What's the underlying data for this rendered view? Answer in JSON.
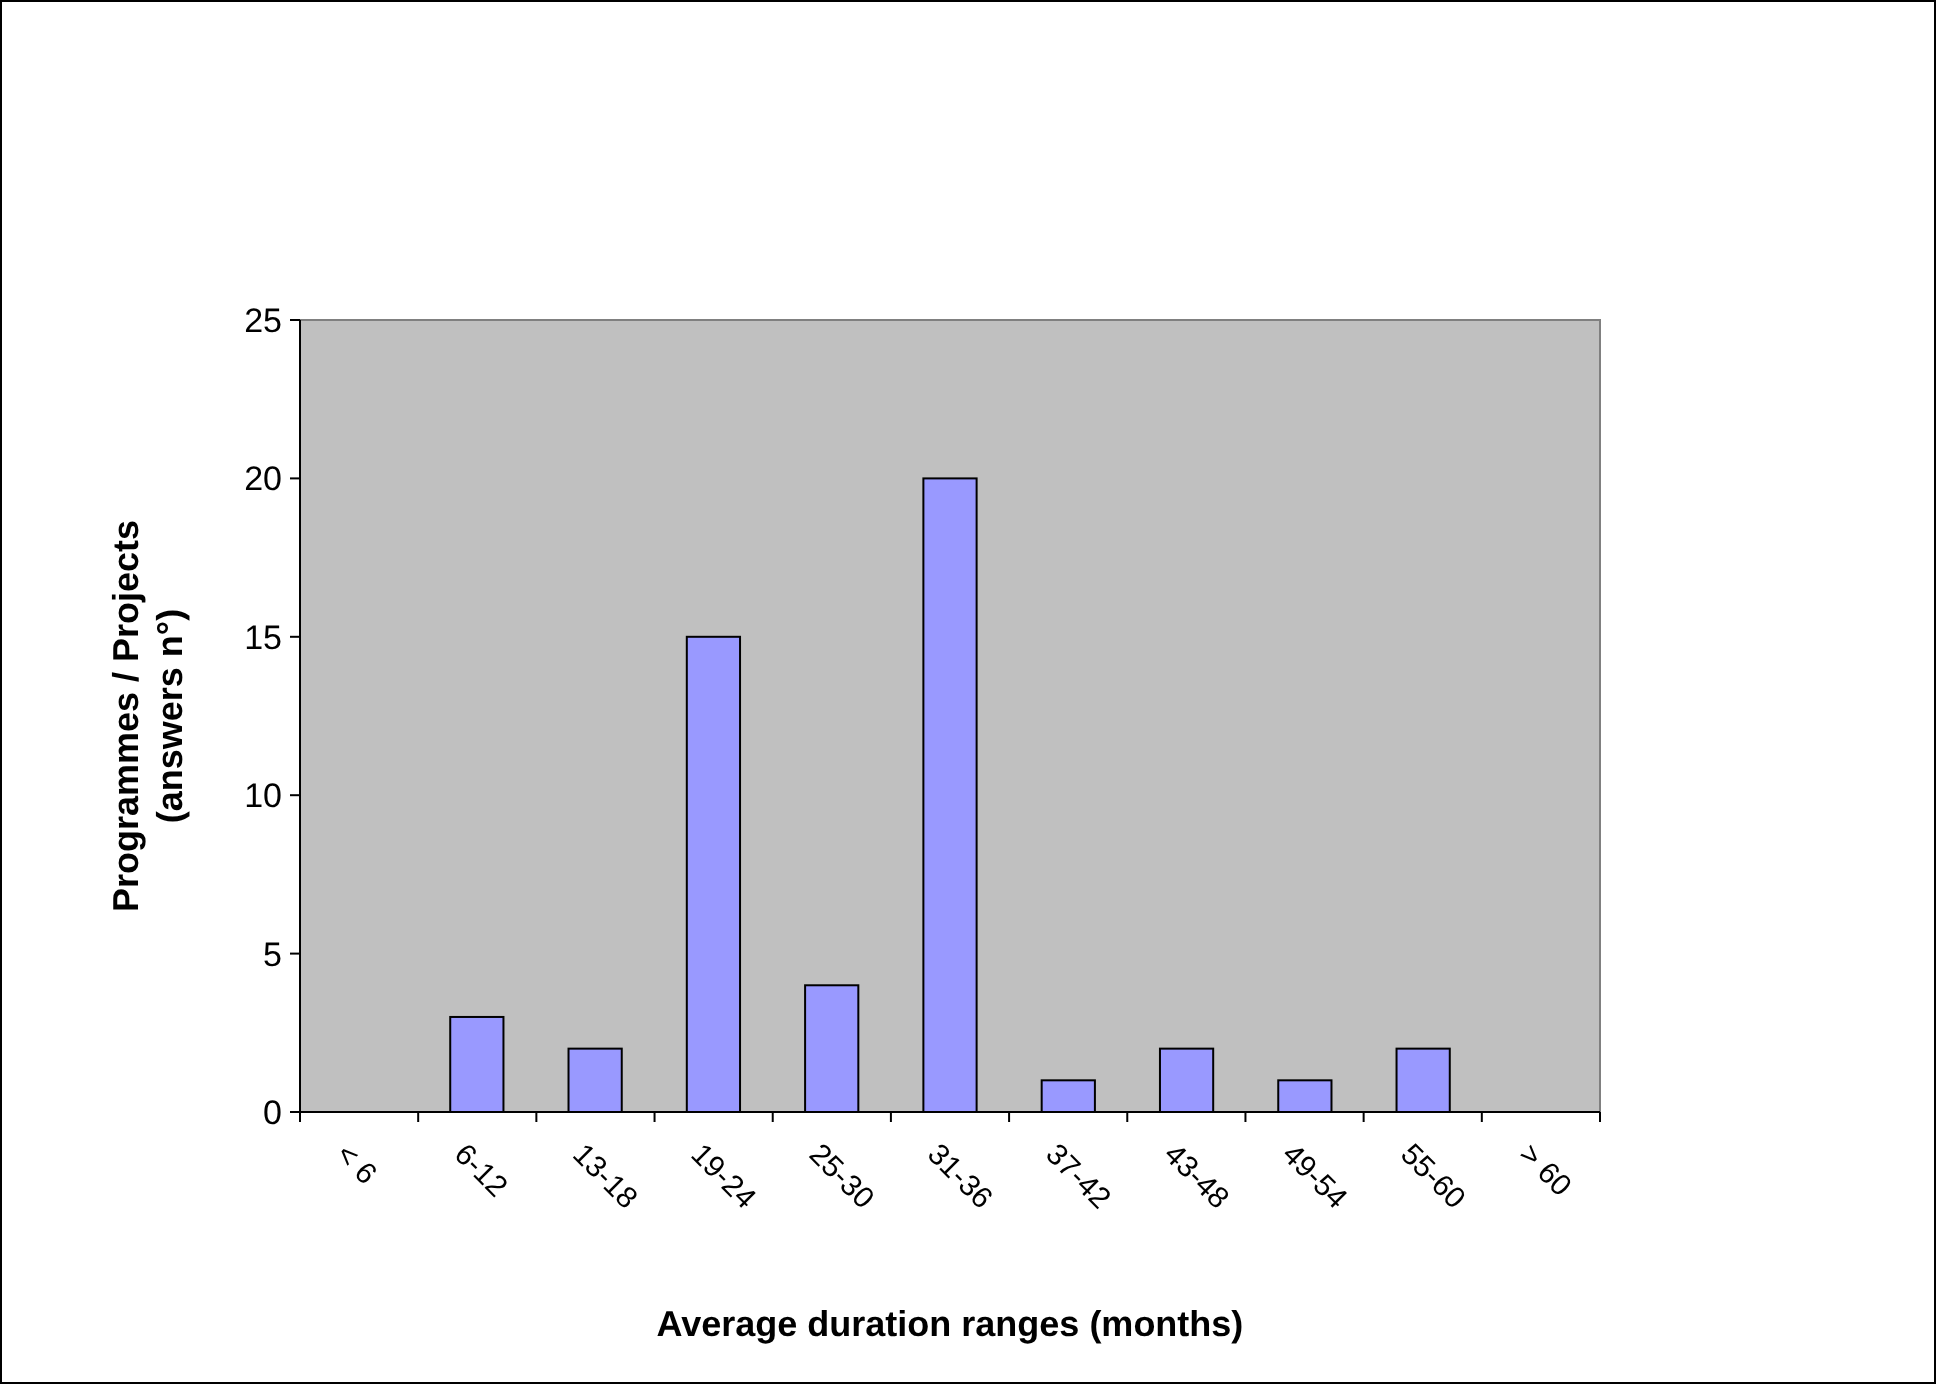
{
  "chart_data": {
    "type": "bar",
    "xlabel": "Average duration ranges (months)",
    "ylabel": "Programmes / Projects\n(answers n°)",
    "categories": [
      "< 6",
      "6-12",
      "13-18",
      "19-24",
      "25-30",
      "31-36",
      "37-42",
      "43-48",
      "49-54",
      "55-60",
      "> 60"
    ],
    "values": [
      0,
      3,
      2,
      15,
      4,
      20,
      1,
      2,
      1,
      2,
      0
    ],
    "color": "#9999ff",
    "ylim": [
      0,
      25
    ],
    "yticks": [
      0,
      5,
      10,
      15,
      20,
      25
    ],
    "grid": false
  }
}
